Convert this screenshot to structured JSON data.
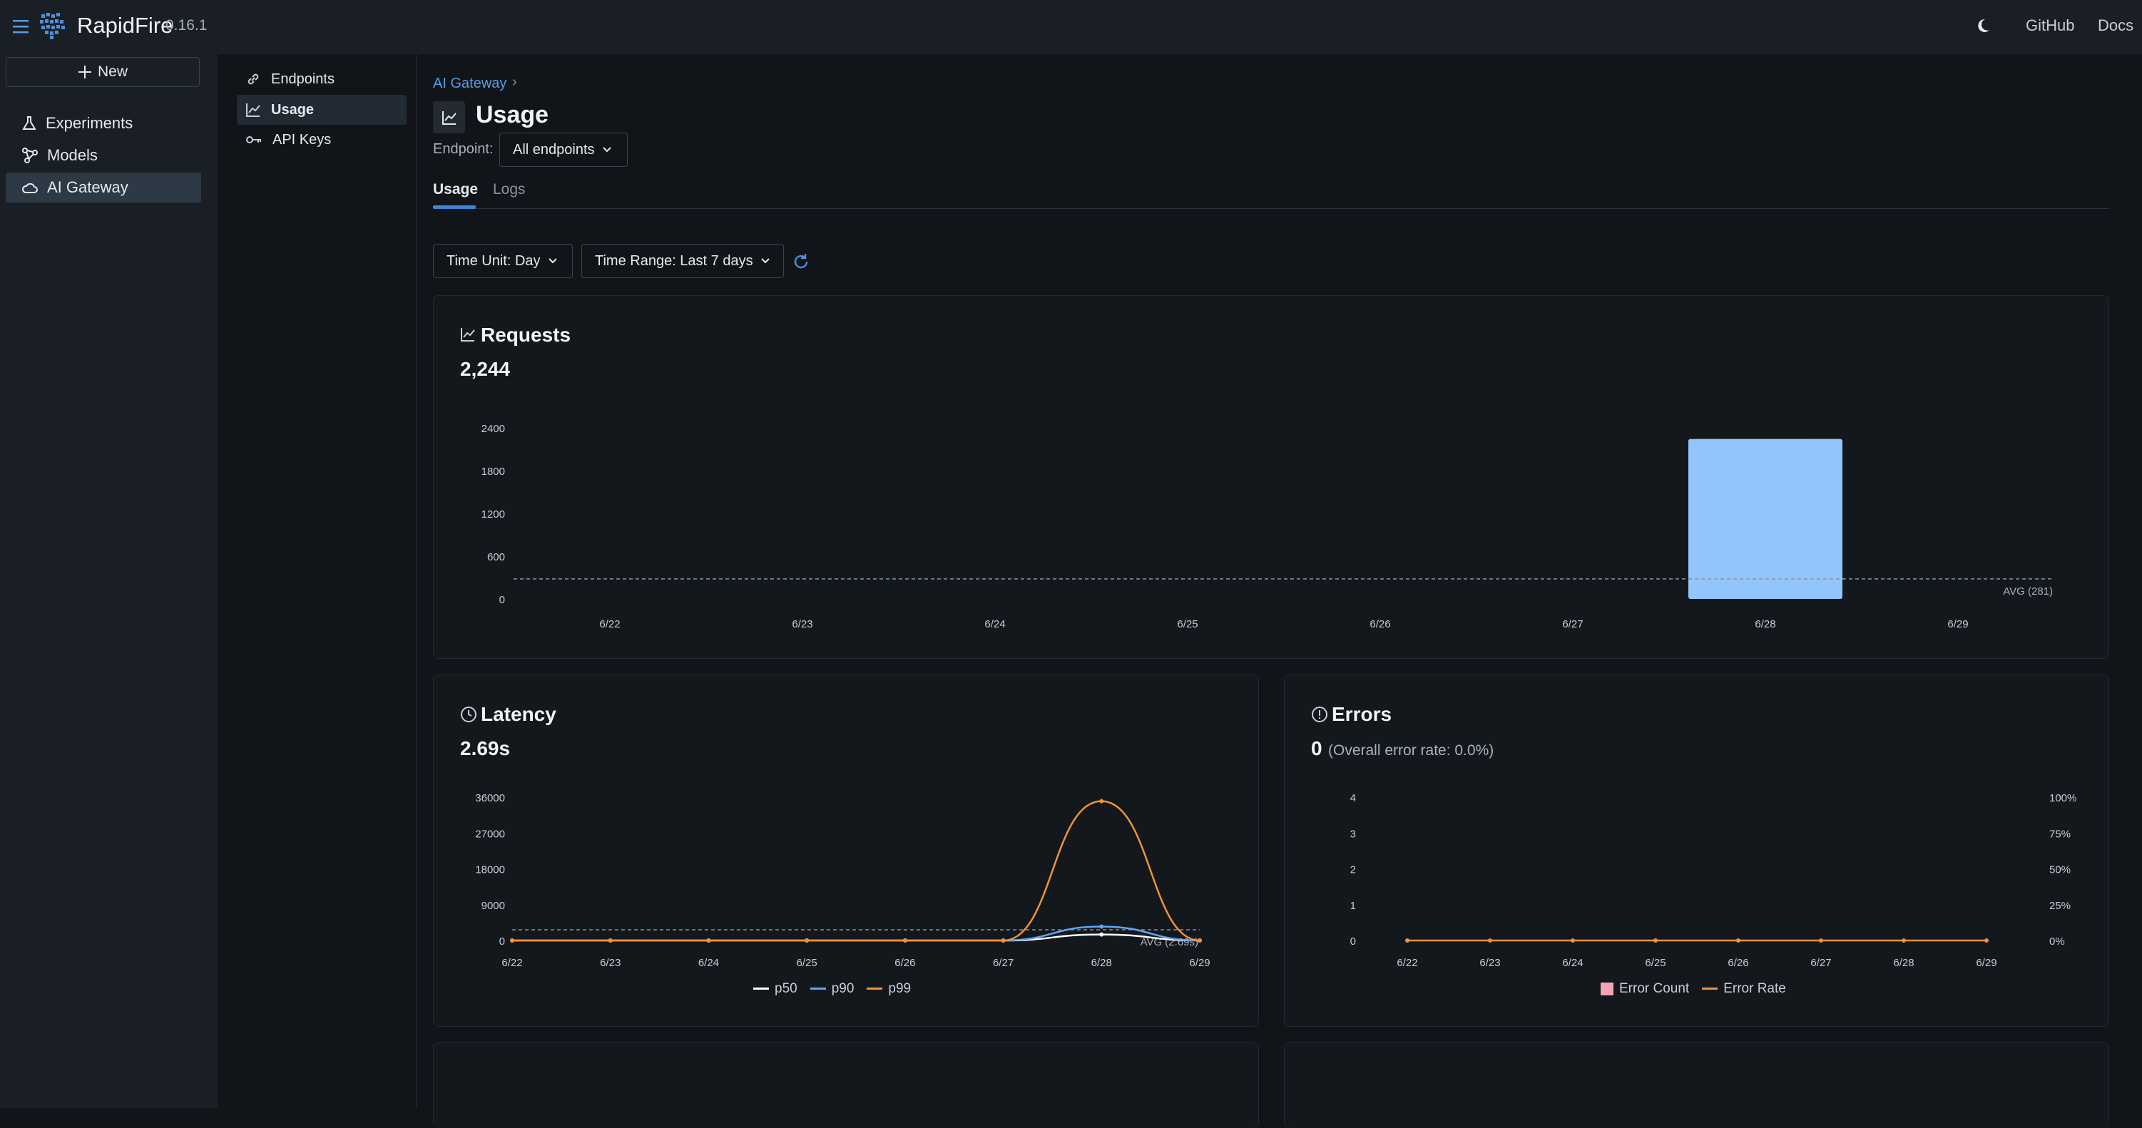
{
  "app": {
    "name": "RapidFire",
    "version": "0.16.1"
  },
  "topbar": {
    "github": "GitHub",
    "docs": "Docs"
  },
  "sidebar": {
    "new_label": "New",
    "items": [
      {
        "label": "Experiments",
        "icon": "flask-icon",
        "active": false
      },
      {
        "label": "Models",
        "icon": "models-icon",
        "active": false
      },
      {
        "label": "AI Gateway",
        "icon": "cloud-icon",
        "active": true
      }
    ]
  },
  "subnav": {
    "items": [
      {
        "label": "Endpoints",
        "icon": "link-icon"
      },
      {
        "label": "Usage",
        "icon": "chart-line-icon"
      },
      {
        "label": "API Keys",
        "icon": "key-icon"
      }
    ]
  },
  "breadcrumb": {
    "parent": "AI Gateway",
    "separator": "›"
  },
  "page": {
    "title": "Usage"
  },
  "endpoint_filter": {
    "label": "Endpoint:",
    "value": "All endpoints"
  },
  "tabs": [
    {
      "label": "Usage",
      "active": true
    },
    {
      "label": "Logs",
      "active": false
    }
  ],
  "controls": {
    "time_unit": "Time Unit: Day",
    "time_range": "Time Range: Last 7 days"
  },
  "requests_card": {
    "title": "Requests",
    "value": "2,244"
  },
  "latency_card": {
    "title": "Latency",
    "value": "2.69s"
  },
  "errors_card": {
    "title": "Errors",
    "value": "0",
    "subtext": "(Overall error rate: 0.0%)"
  },
  "chart_data": [
    {
      "type": "bar",
      "title": "Requests",
      "categories": [
        "6/22",
        "6/23",
        "6/24",
        "6/25",
        "6/26",
        "6/27",
        "6/28",
        "6/29"
      ],
      "values": [
        0,
        0,
        0,
        0,
        0,
        0,
        2244,
        0
      ],
      "ylim": [
        0,
        2400
      ],
      "yticks": [
        "2400",
        "1800",
        "1200",
        "600",
        "0"
      ],
      "avg_label": "AVG (281)",
      "avg_value": 281,
      "color": "#93c5fd"
    },
    {
      "type": "line",
      "title": "Latency",
      "categories": [
        "6/22",
        "6/23",
        "6/24",
        "6/25",
        "6/26",
        "6/27",
        "6/28",
        "6/29"
      ],
      "ylim": [
        0,
        36000
      ],
      "yticks": [
        "36000",
        "27000",
        "18000",
        "9000",
        "0"
      ],
      "avg_label": "AVG (2.69s)",
      "avg_value": 2690,
      "series": [
        {
          "name": "p50",
          "color": "#ffffff",
          "values": [
            0,
            0,
            0,
            0,
            0,
            0,
            1500,
            0
          ]
        },
        {
          "name": "p90",
          "color": "#60a5fa",
          "values": [
            0,
            0,
            0,
            0,
            0,
            0,
            3500,
            0
          ]
        },
        {
          "name": "p99",
          "color": "#f0923a",
          "values": [
            0,
            0,
            0,
            0,
            0,
            0,
            35000,
            0
          ]
        }
      ]
    },
    {
      "type": "bar",
      "title": "Errors",
      "categories": [
        "6/22",
        "6/23",
        "6/24",
        "6/25",
        "6/26",
        "6/27",
        "6/28",
        "6/29"
      ],
      "ylim": [
        0,
        4
      ],
      "yticks": [
        "4",
        "3",
        "2",
        "1",
        "0"
      ],
      "y2ticks": [
        "100%",
        "75%",
        "50%",
        "25%",
        "0%"
      ],
      "series": [
        {
          "name": "Error Count",
          "color": "#f4a3b4",
          "values": [
            0,
            0,
            0,
            0,
            0,
            0,
            0,
            0
          ]
        },
        {
          "name": "Error Rate",
          "color": "#f0923a",
          "values": [
            0,
            0,
            0,
            0,
            0,
            0,
            0,
            0
          ]
        }
      ]
    }
  ]
}
